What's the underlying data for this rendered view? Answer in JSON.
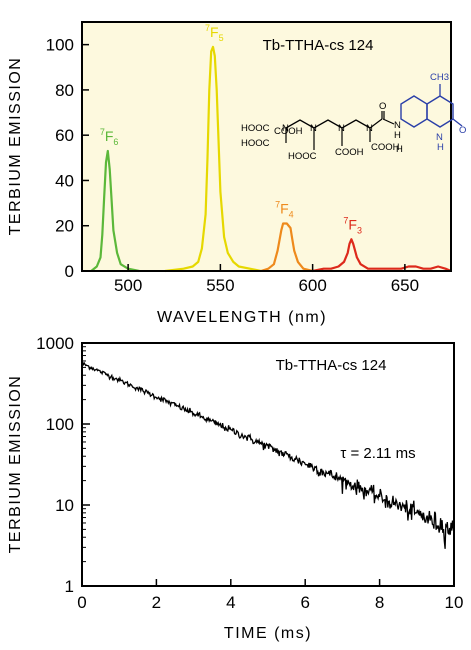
{
  "chart_data": [
    {
      "type": "line",
      "title": "Tb-TTHA-cs 124",
      "xlabel": "WAVELENGTH (nm)",
      "ylabel": "TERBIUM EMISSION",
      "xlim": [
        475,
        675
      ],
      "ylim": [
        0,
        110
      ],
      "xticks": [
        500,
        550,
        600,
        650
      ],
      "yticks": [
        0,
        20,
        40,
        60,
        80,
        100
      ],
      "background": "#fdf9de",
      "structure_labels": {
        "chain": [
          "HOOC",
          "HOOC",
          "HOOC",
          "COOH",
          "COOH",
          "COOH",
          "N",
          "N",
          "N",
          "N",
          "O",
          "N",
          "H",
          "H"
        ],
        "coumarin": [
          "CH3",
          "N",
          "H",
          "O"
        ]
      },
      "series": [
        {
          "peak_label": "7F6",
          "label_main": "F",
          "label_sup": "7",
          "label_sub": "6",
          "color": "#5cb83a",
          "x": [
            480,
            483,
            485,
            486,
            487,
            488,
            489,
            490,
            491,
            492,
            494,
            496,
            500,
            506
          ],
          "y": [
            0,
            2,
            6,
            16,
            32,
            48,
            53,
            45,
            32,
            18,
            8,
            3,
            1,
            0
          ]
        },
        {
          "peak_label": "7F5",
          "label_main": "F",
          "label_sup": "7",
          "label_sub": "5",
          "color": "#e6d800",
          "x": [
            520,
            530,
            535,
            538,
            540,
            542,
            543,
            544,
            545,
            546,
            547,
            548,
            549,
            550,
            552,
            554,
            557,
            560,
            566,
            572
          ],
          "y": [
            0,
            1,
            2,
            4,
            10,
            25,
            50,
            80,
            97,
            99,
            95,
            80,
            58,
            35,
            15,
            8,
            4,
            2,
            1,
            0
          ]
        },
        {
          "peak_label": "7F4",
          "label_main": "F",
          "label_sup": "7",
          "label_sub": "4",
          "color": "#ee8a1c",
          "x": [
            572,
            576,
            579,
            581,
            583,
            584,
            586,
            588,
            589,
            590,
            592,
            595,
            600
          ],
          "y": [
            0,
            1,
            3,
            9,
            18,
            21,
            21,
            19,
            14,
            9,
            4,
            1,
            0
          ]
        },
        {
          "peak_label": "7F3",
          "label_main": "F",
          "label_sup": "7",
          "label_sub": "3",
          "color": "#dd2a1b",
          "x": [
            600,
            606,
            610,
            614,
            617,
            619,
            620,
            621,
            622,
            624,
            626,
            630,
            636,
            642,
            648,
            652,
            656,
            660,
            664,
            668,
            672,
            675
          ],
          "y": [
            0,
            1,
            1,
            2,
            4,
            8,
            12,
            14,
            12,
            6,
            3,
            1,
            1,
            1,
            1,
            2,
            2,
            1,
            1,
            2,
            1,
            0
          ]
        }
      ]
    },
    {
      "type": "line",
      "title": "Tb-TTHA-cs 124",
      "xlabel": "TIME (ms)",
      "ylabel": "TERBIUM EMISSION",
      "xlim": [
        0,
        10
      ],
      "ylim": [
        1,
        1000
      ],
      "yscale": "log",
      "xticks": [
        0,
        2,
        4,
        6,
        8,
        10
      ],
      "yticks": [
        1,
        10,
        100,
        1000
      ],
      "annotation": "τ = 2.11 ms",
      "decay": {
        "A": 560,
        "tau_ms": 2.11,
        "points": 500,
        "color": "#000000"
      }
    }
  ]
}
